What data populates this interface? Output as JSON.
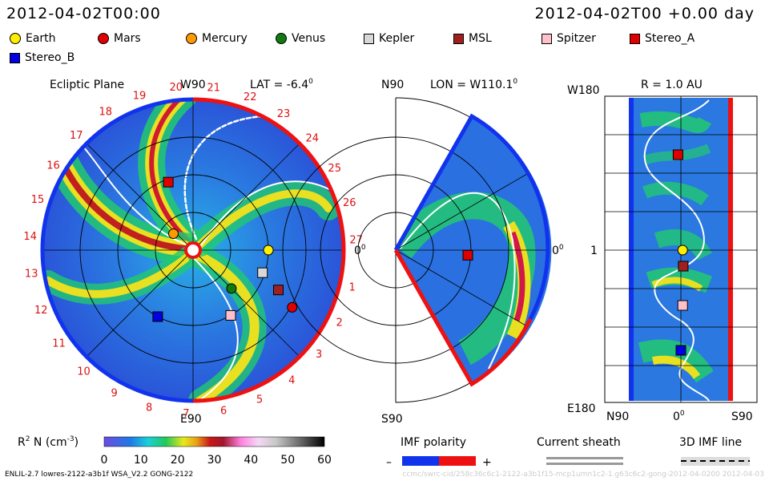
{
  "header": {
    "left_time": "2012-04-02T00:00",
    "right_time": "2012-04-02T00 +0.00 day"
  },
  "legend": [
    {
      "label": "Earth",
      "shape": "circle",
      "color": "#ffee00"
    },
    {
      "label": "Mars",
      "shape": "circle",
      "color": "#e00000"
    },
    {
      "label": "Mercury",
      "shape": "circle",
      "color": "#ff9900"
    },
    {
      "label": "Venus",
      "shape": "circle",
      "color": "#107a10"
    },
    {
      "label": "Kepler",
      "shape": "square",
      "color": "#d8d8d8"
    },
    {
      "label": "MSL",
      "shape": "square",
      "color": "#a02020"
    },
    {
      "label": "Spitzer",
      "shape": "square",
      "color": "#ffc0cb"
    },
    {
      "label": "Stereo_A",
      "shape": "square",
      "color": "#e00000"
    },
    {
      "label": "Stereo_B",
      "shape": "square",
      "color": "#0000e0"
    }
  ],
  "panels": {
    "ecliptic": {
      "title": "Ecliptic Plane",
      "top_label": "W90",
      "lat_label": "LAT = -6.4",
      "lat_sup": "0",
      "bottom_label": "E90",
      "right_label": "0",
      "right_sup": "0"
    },
    "meridional": {
      "top_label": "N90",
      "lon_label": "LON = W110.1",
      "lon_sup": "0",
      "bottom_label": "S90",
      "right_label": "0",
      "right_sup": "0"
    },
    "latlon": {
      "r_label": "R = 1.0 AU",
      "top_left": "W180",
      "mid_left": "1",
      "bottom_left": "E180",
      "x_left": "N90",
      "x_mid": "0",
      "x_mid_sup": "0",
      "x_right": "S90"
    }
  },
  "colorbar": {
    "label": "R",
    "label_sup": "2",
    "label_rest": " N (cm",
    "unit_sup": "-3",
    "label_end": ")",
    "ticks": [
      "0",
      "10",
      "20",
      "30",
      "40",
      "50",
      "60"
    ]
  },
  "imf": {
    "title": "IMF polarity",
    "minus": "–",
    "plus": "+"
  },
  "sheath": {
    "title": "Current sheath"
  },
  "imf3d": {
    "title": "3D IMF line"
  },
  "footer": {
    "left": "ENLIL-2.7 lowres-2122-a3b1f WSA_V2.2 GONG-2122",
    "right": "ccmc/swrc-cid/258c36c6c1-2122-a3b1f15-mcp1umn1c2-1.g63c6c2-gong-2012-04-0200 2012-04-03"
  },
  "chart_data": [
    {
      "type": "heatmap",
      "title": "Ecliptic Plane",
      "colorscale_range": [
        0,
        60
      ],
      "clock_labels": [
        "1",
        "2",
        "3",
        "4",
        "5",
        "6",
        "7",
        "8",
        "9",
        "10",
        "11",
        "12",
        "13",
        "14",
        "15",
        "16",
        "17",
        "18",
        "19",
        "20",
        "21",
        "22",
        "23",
        "24",
        "25",
        "26",
        "27"
      ],
      "objects": [
        {
          "name": "Earth",
          "r_au": 1.0,
          "angle_deg": 0
        },
        {
          "name": "Mercury",
          "r_au": 0.34,
          "angle_deg": 140
        },
        {
          "name": "Venus",
          "r_au": 0.72,
          "angle_deg": -45
        },
        {
          "name": "Mars",
          "r_au": 1.52,
          "angle_deg": -30
        },
        {
          "name": "Kepler",
          "r_au": 0.97,
          "angle_deg": -18
        },
        {
          "name": "MSL",
          "r_au": 1.25,
          "angle_deg": -25
        },
        {
          "name": "Spitzer",
          "r_au": 1.0,
          "angle_deg": -60
        },
        {
          "name": "Stereo_A",
          "r_au": 0.96,
          "angle_deg": 110
        },
        {
          "name": "Stereo_B",
          "r_au": 1.0,
          "angle_deg": -118
        }
      ]
    },
    {
      "type": "heatmap",
      "title": "LON = W110.1",
      "objects": [
        {
          "name": "Stereo_A",
          "r_au": 0.96,
          "lat_deg": -4
        }
      ]
    },
    {
      "type": "heatmap",
      "title": "R = 1.0 AU",
      "objects": [
        {
          "name": "Stereo_A",
          "lat_deg": 5,
          "lon_label": "W110"
        },
        {
          "name": "Earth",
          "lat_deg": -3,
          "lon_label": "1"
        },
        {
          "name": "MSL",
          "lat_deg": -4,
          "lon_label": "~E10"
        },
        {
          "name": "Spitzer",
          "lat_deg": -3,
          "lon_label": "~E60"
        },
        {
          "name": "Stereo_B",
          "lat_deg": 0,
          "lon_label": "~E120"
        }
      ]
    }
  ]
}
